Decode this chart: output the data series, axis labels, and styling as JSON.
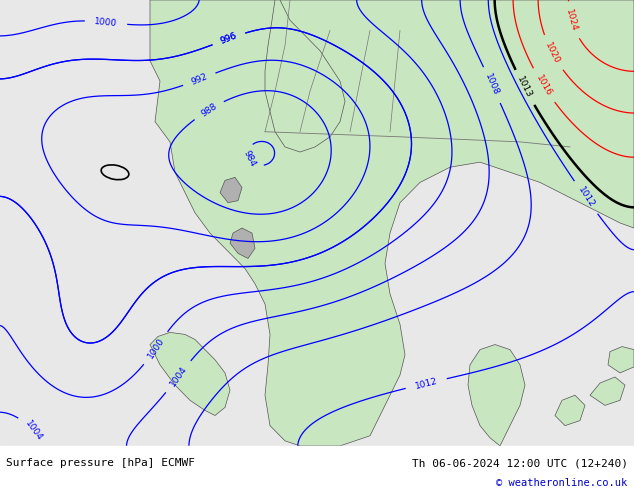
{
  "title_left": "Surface pressure [hPa] ECMWF",
  "title_right": "Th 06-06-2024 12:00 UTC (12+240)",
  "copyright": "© weatheronline.co.uk",
  "bg_color": "#d8d8d8",
  "land_color": "#c8e6c0",
  "water_color": "#d0e8f0",
  "fig_width": 6.34,
  "fig_height": 4.9,
  "dpi": 100
}
